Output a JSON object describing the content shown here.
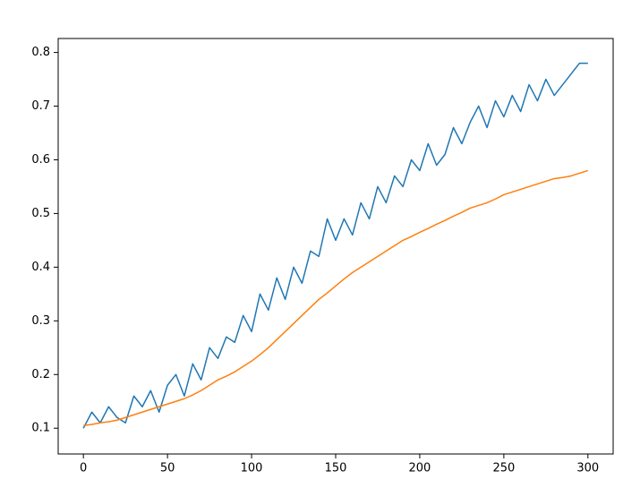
{
  "chart_data": {
    "type": "line",
    "x": [
      0,
      5,
      10,
      15,
      20,
      25,
      30,
      35,
      40,
      45,
      50,
      55,
      60,
      65,
      70,
      75,
      80,
      85,
      90,
      95,
      100,
      105,
      110,
      115,
      120,
      125,
      130,
      135,
      140,
      145,
      150,
      155,
      160,
      165,
      170,
      175,
      180,
      185,
      190,
      195,
      200,
      205,
      210,
      215,
      220,
      225,
      230,
      235,
      240,
      245,
      250,
      255,
      260,
      265,
      270,
      275,
      280,
      285,
      290,
      295,
      300
    ],
    "series": [
      {
        "color": "#1f77b4",
        "values": [
          0.1,
          0.13,
          0.11,
          0.14,
          0.12,
          0.11,
          0.16,
          0.14,
          0.17,
          0.13,
          0.18,
          0.2,
          0.16,
          0.22,
          0.19,
          0.25,
          0.23,
          0.27,
          0.26,
          0.31,
          0.28,
          0.35,
          0.32,
          0.38,
          0.34,
          0.4,
          0.37,
          0.43,
          0.42,
          0.49,
          0.45,
          0.49,
          0.46,
          0.52,
          0.49,
          0.55,
          0.52,
          0.57,
          0.55,
          0.6,
          0.58,
          0.63,
          0.59,
          0.61,
          0.66,
          0.63,
          0.67,
          0.7,
          0.66,
          0.71,
          0.68,
          0.72,
          0.69,
          0.74,
          0.71,
          0.75,
          0.72,
          0.74,
          0.76,
          0.78,
          0.78
        ]
      },
      {
        "color": "#ff7f0e",
        "values": [
          0.105,
          0.107,
          0.11,
          0.112,
          0.115,
          0.12,
          0.125,
          0.13,
          0.135,
          0.14,
          0.145,
          0.15,
          0.155,
          0.162,
          0.17,
          0.18,
          0.19,
          0.197,
          0.205,
          0.215,
          0.225,
          0.237,
          0.25,
          0.265,
          0.28,
          0.295,
          0.31,
          0.325,
          0.34,
          0.352,
          0.365,
          0.378,
          0.39,
          0.4,
          0.41,
          0.42,
          0.43,
          0.44,
          0.45,
          0.457,
          0.465,
          0.472,
          0.48,
          0.487,
          0.495,
          0.502,
          0.51,
          0.515,
          0.52,
          0.527,
          0.535,
          0.54,
          0.545,
          0.55,
          0.555,
          0.56,
          0.565,
          0.567,
          0.57,
          0.575,
          0.58
        ]
      }
    ],
    "xlim": [
      -15,
      315
    ],
    "ylim": [
      0.052,
      0.826
    ],
    "xticks": [
      0,
      50,
      100,
      150,
      200,
      250,
      300
    ],
    "yticks": [
      0.1,
      0.2,
      0.3,
      0.4,
      0.5,
      0.6,
      0.7,
      0.8
    ],
    "grid": false
  }
}
